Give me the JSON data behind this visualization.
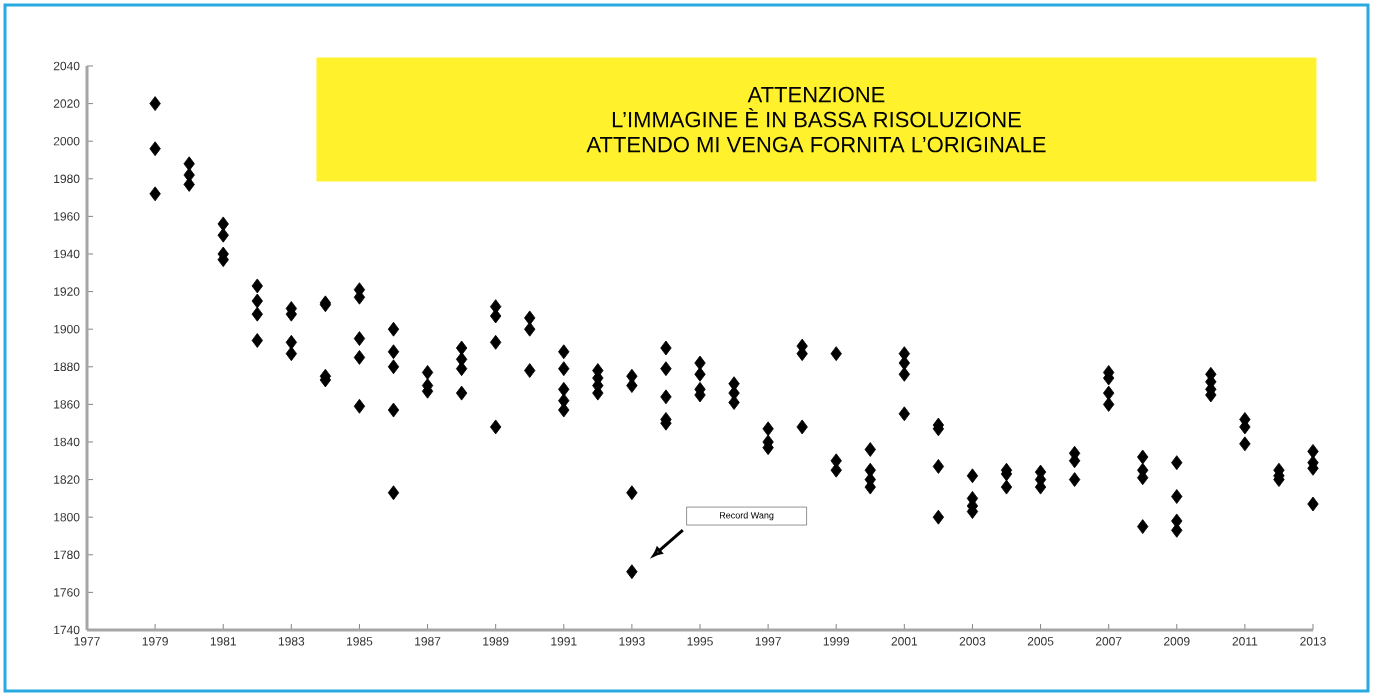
{
  "chart_data": {
    "type": "scatter",
    "x": [
      1979,
      1979,
      1979,
      1980,
      1980,
      1980,
      1981,
      1981,
      1981,
      1981,
      1982,
      1982,
      1982,
      1982,
      1983,
      1983,
      1983,
      1983,
      1984,
      1984,
      1984,
      1984,
      1985,
      1985,
      1985,
      1985,
      1985,
      1986,
      1986,
      1986,
      1986,
      1986,
      1987,
      1987,
      1987,
      1988,
      1988,
      1988,
      1988,
      1989,
      1989,
      1989,
      1989,
      1990,
      1990,
      1990,
      1991,
      1991,
      1991,
      1991,
      1991,
      1992,
      1992,
      1992,
      1992,
      1993,
      1993,
      1993,
      1993,
      1994,
      1994,
      1994,
      1994,
      1994,
      1995,
      1995,
      1995,
      1995,
      1996,
      1996,
      1996,
      1997,
      1997,
      1997,
      1998,
      1998,
      1998,
      1999,
      1999,
      1999,
      2000,
      2000,
      2000,
      2000,
      2001,
      2001,
      2001,
      2001,
      2002,
      2002,
      2002,
      2002,
      2003,
      2003,
      2003,
      2003,
      2004,
      2004,
      2004,
      2005,
      2005,
      2005,
      2006,
      2006,
      2006,
      2007,
      2007,
      2007,
      2007,
      2008,
      2008,
      2008,
      2008,
      2009,
      2009,
      2009,
      2009,
      2010,
      2010,
      2010,
      2010,
      2011,
      2011,
      2011,
      2012,
      2012,
      2012,
      2013,
      2013,
      2013,
      2013
    ],
    "values": [
      2020,
      1996,
      1972,
      1988,
      1982,
      1977,
      1956,
      1950,
      1940,
      1937,
      1923,
      1915,
      1908,
      1894,
      1911,
      1908,
      1893,
      1887,
      1914,
      1913,
      1875,
      1873,
      1921,
      1917,
      1895,
      1885,
      1859,
      1900,
      1888,
      1880,
      1857,
      1813,
      1877,
      1870,
      1867,
      1890,
      1884,
      1879,
      1866,
      1912,
      1907,
      1893,
      1848,
      1906,
      1900,
      1878,
      1888,
      1879,
      1868,
      1862,
      1857,
      1878,
      1874,
      1870,
      1866,
      1875,
      1870,
      1813,
      1771,
      1890,
      1879,
      1864,
      1852,
      1850,
      1882,
      1876,
      1868,
      1865,
      1871,
      1866,
      1861,
      1847,
      1840,
      1837,
      1891,
      1887,
      1848,
      1887,
      1830,
      1825,
      1836,
      1825,
      1820,
      1816,
      1887,
      1882,
      1876,
      1855,
      1849,
      1847,
      1827,
      1800,
      1822,
      1810,
      1806,
      1803,
      1825,
      1823,
      1816,
      1824,
      1820,
      1816,
      1834,
      1830,
      1820,
      1877,
      1874,
      1866,
      1860,
      1832,
      1825,
      1821,
      1795,
      1829,
      1811,
      1798,
      1793,
      1876,
      1872,
      1868,
      1865,
      1852,
      1848,
      1839,
      1825,
      1822,
      1820,
      1835,
      1829,
      1826,
      1807
    ],
    "color": "#000000",
    "marker": "diamond",
    "xlim": [
      1977,
      2013
    ],
    "ylim": [
      1740,
      2040
    ],
    "xticks": [
      1977,
      1979,
      1981,
      1983,
      1985,
      1987,
      1989,
      1991,
      1993,
      1995,
      1997,
      1999,
      2001,
      2003,
      2005,
      2007,
      2009,
      2011,
      2013
    ],
    "yticks": [
      1740,
      1760,
      1780,
      1800,
      1820,
      1840,
      1860,
      1880,
      1900,
      1920,
      1940,
      1960,
      1980,
      2000,
      2020,
      2040
    ],
    "annotations": [
      "ATTENZIONE",
      "L’IMMAGINE È IN BASSA RISOLUZIONE",
      "ATTENDO MI VENGA FORNITA L’ORIGINALE",
      "Record Wang"
    ]
  }
}
